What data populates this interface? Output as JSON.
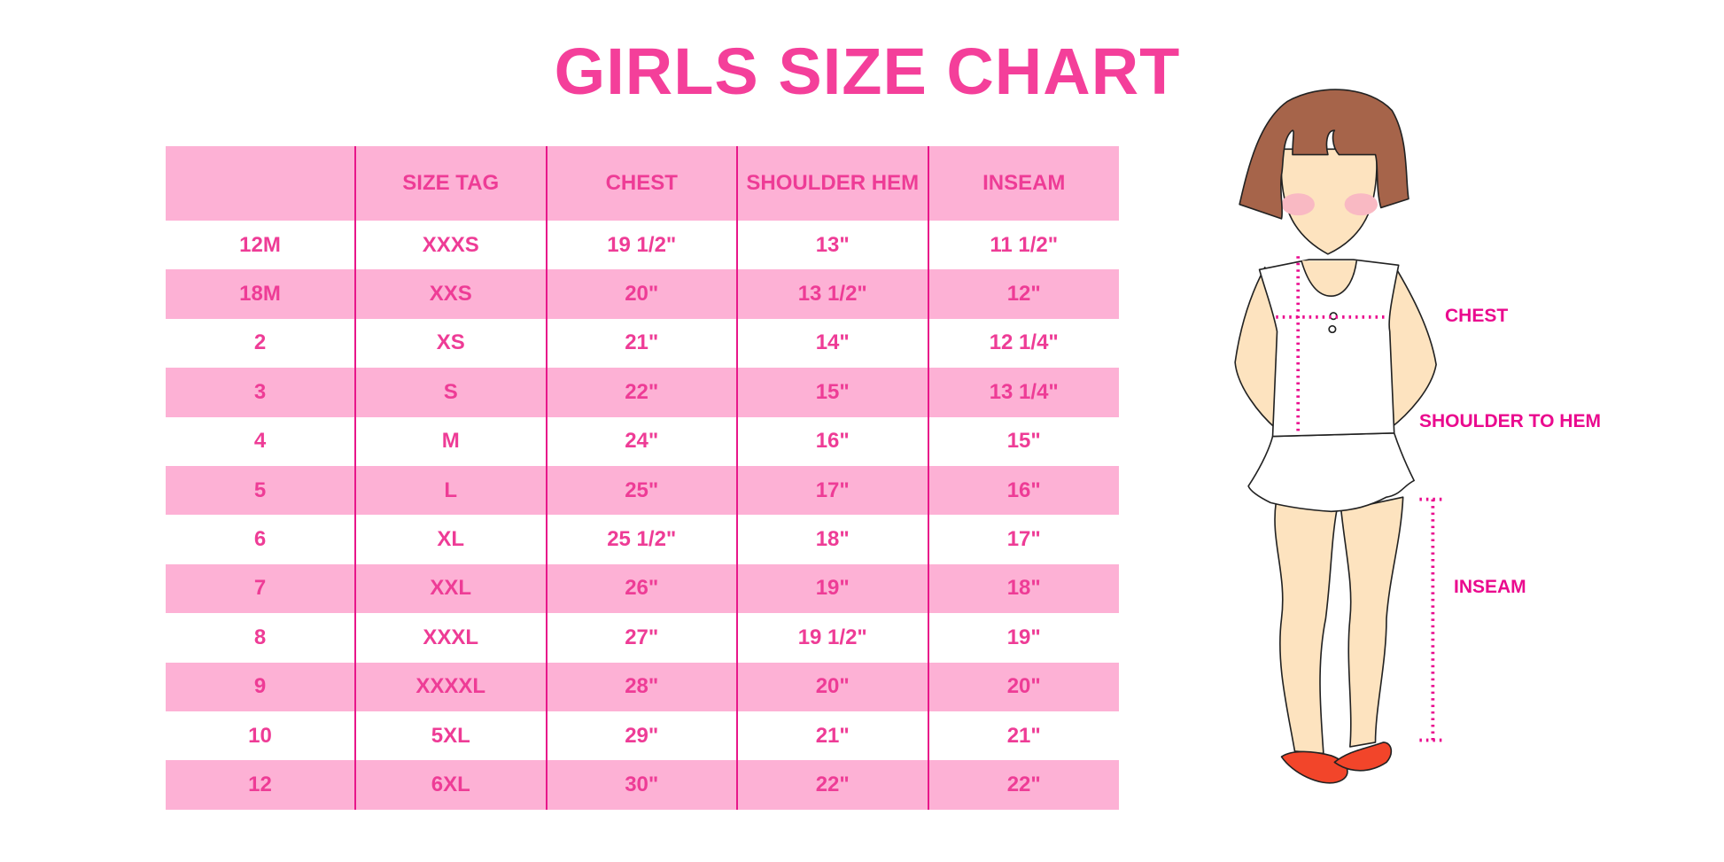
{
  "title": "GIRLS SIZE CHART",
  "table": {
    "headers": [
      "",
      "SIZE TAG",
      "CHEST",
      "SHOULDER HEM",
      "INSEAM"
    ],
    "rows": [
      [
        "12M",
        "XXXS",
        "19 1/2\"",
        "13\"",
        "11 1/2\""
      ],
      [
        "18M",
        "XXS",
        "20\"",
        "13 1/2\"",
        "12\""
      ],
      [
        "2",
        "XS",
        "21\"",
        "14\"",
        "12 1/4\""
      ],
      [
        "3",
        "S",
        "22\"",
        "15\"",
        "13 1/4\""
      ],
      [
        "4",
        "M",
        "24\"",
        "16\"",
        "15\""
      ],
      [
        "5",
        "L",
        "25\"",
        "17\"",
        "16\""
      ],
      [
        "6",
        "XL",
        "25 1/2\"",
        "18\"",
        "17\""
      ],
      [
        "7",
        "XXL",
        "26\"",
        "19\"",
        "18\""
      ],
      [
        "8",
        "XXXL",
        "27\"",
        "19 1/2\"",
        "19\""
      ],
      [
        "9",
        "XXXXL",
        "28\"",
        "20\"",
        "20\""
      ],
      [
        "10",
        "5XL",
        "29\"",
        "21\"",
        "21\""
      ],
      [
        "12",
        "6XL",
        "30\"",
        "22\"",
        "22\""
      ]
    ]
  },
  "figure": {
    "labels": {
      "chest": "CHEST",
      "shoulder_to_hem": "SHOULDER TO HEM",
      "inseam": "INSEAM"
    }
  },
  "colors": {
    "title": "#f43f9a",
    "header_bg": "#fdb1d5",
    "text": "#ee3c96",
    "divider": "#e8178a",
    "measure": "#ea0a8e"
  }
}
